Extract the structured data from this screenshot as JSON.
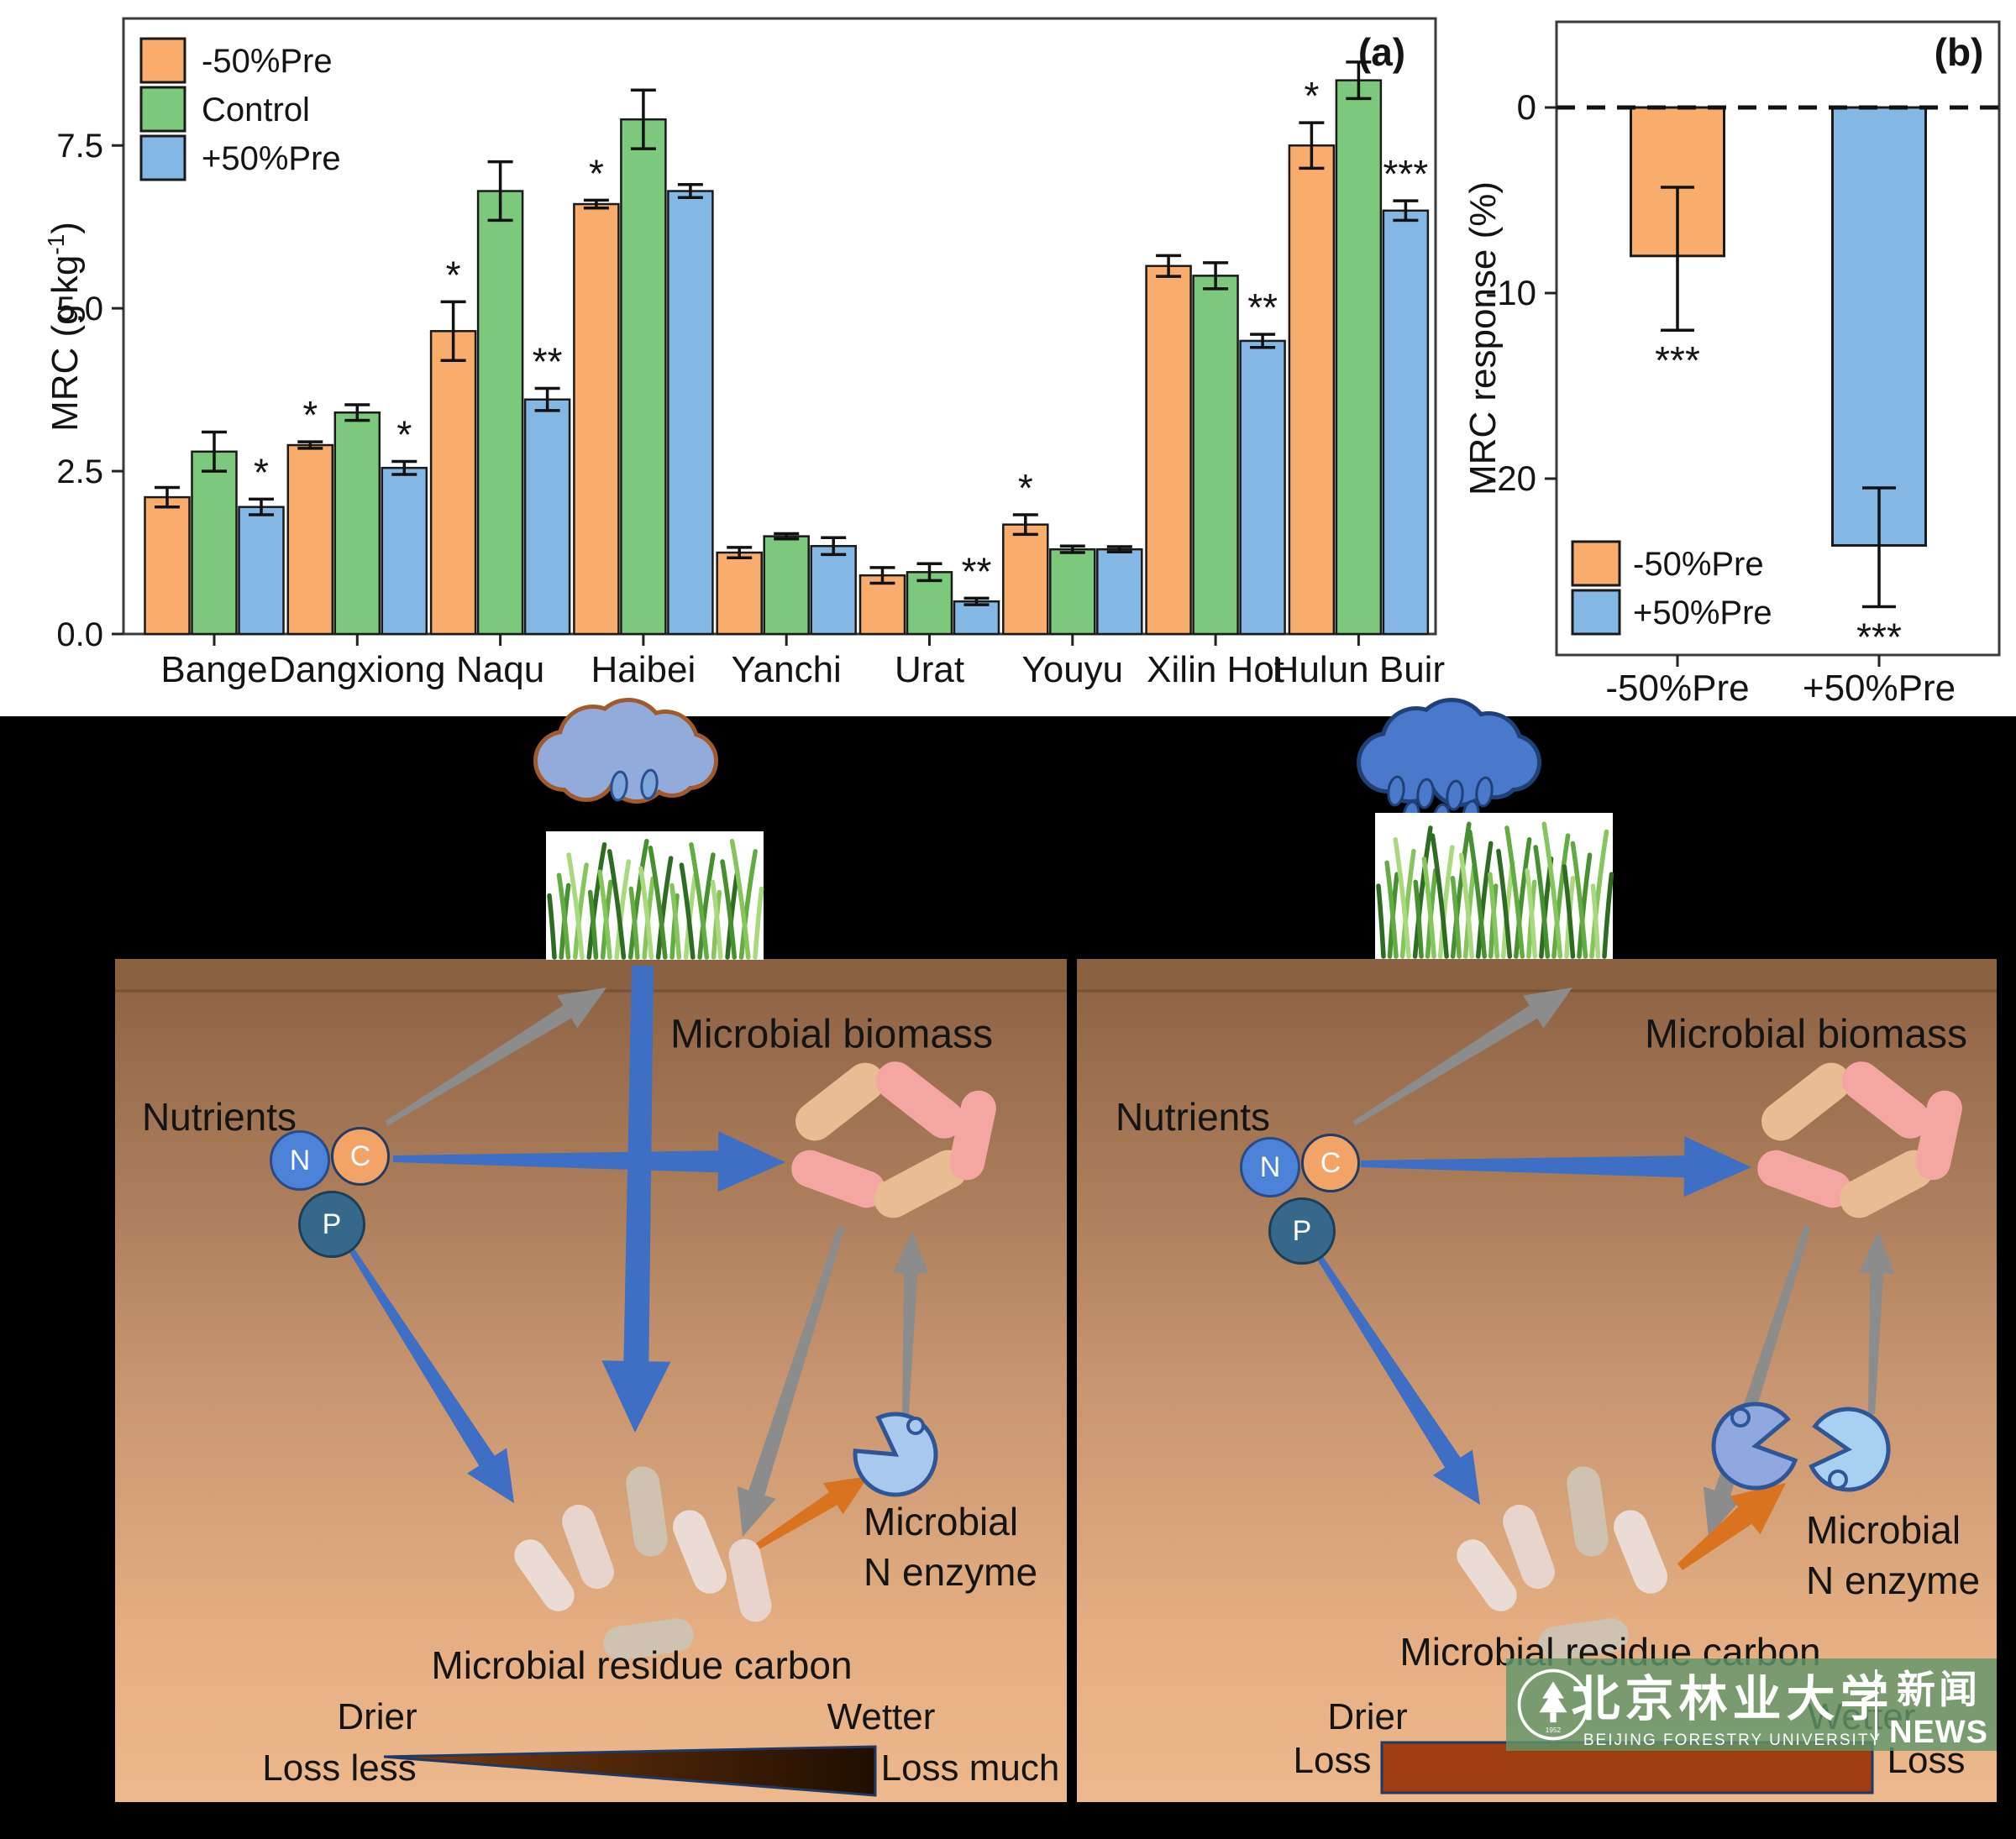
{
  "figure": {
    "panel_a_label": "(a)",
    "panel_b_label": "(b)"
  },
  "chart_data": [
    {
      "type": "bar",
      "panel_label": "(a)",
      "ylabel_main": "MRC (g kg",
      "ylabel_sup": "-1",
      "ylabel_close": ")",
      "yticks": [
        0.0,
        2.5,
        5.0,
        7.5
      ],
      "ylim": [
        0,
        9.4
      ],
      "grid": false,
      "legend_position": "top-left",
      "categories": [
        "Bange",
        "Dangxiong",
        "Naqu",
        "Haibei",
        "Yanchi",
        "Urat",
        "Youyu",
        "Xilin Hot",
        "Hulun Buir"
      ],
      "series": [
        {
          "name": "-50%Pre",
          "color": "#F9AD6C",
          "values": [
            2.1,
            2.9,
            4.65,
            6.6,
            1.25,
            0.9,
            1.68,
            5.65,
            7.5
          ],
          "errors": [
            0.15,
            0.05,
            0.45,
            0.06,
            0.08,
            0.12,
            0.15,
            0.16,
            0.35
          ],
          "sig": [
            "",
            "*",
            "*",
            "*",
            "",
            "",
            "*",
            "",
            "*"
          ]
        },
        {
          "name": "Control",
          "color": "#7CC87C",
          "values": [
            2.8,
            3.4,
            6.8,
            7.9,
            1.5,
            0.95,
            1.3,
            5.5,
            8.5
          ],
          "errors": [
            0.3,
            0.12,
            0.45,
            0.45,
            0.04,
            0.13,
            0.05,
            0.2,
            0.28
          ],
          "sig": [
            "",
            "",
            "",
            "",
            "",
            "",
            "",
            "",
            ""
          ]
        },
        {
          "name": "+50%Pre",
          "color": "#85B7E4",
          "values": [
            1.95,
            2.55,
            3.6,
            6.8,
            1.35,
            0.5,
            1.3,
            4.5,
            6.5
          ],
          "errors": [
            0.12,
            0.1,
            0.17,
            0.1,
            0.13,
            0.05,
            0.04,
            0.1,
            0.15
          ],
          "sig": [
            "*",
            "*",
            "**",
            "",
            "",
            "**",
            "",
            "**",
            "***"
          ]
        }
      ]
    },
    {
      "type": "bar",
      "panel_label": "(b)",
      "ylabel": "MRC response (%)",
      "yticks": [
        0,
        -10,
        -20
      ],
      "ylim": [
        -28.5,
        4.5
      ],
      "grid": false,
      "zero_line": "dashed",
      "categories": [
        "-50%Pre",
        "+50%Pre"
      ],
      "colors": [
        "#F9AD6C",
        "#85B7E4"
      ],
      "values": [
        -8,
        -23.6
      ],
      "errors_high": [
        -4.3,
        -20.5
      ],
      "errors_low": [
        -12,
        -26.9
      ],
      "sig": [
        "***",
        "***"
      ],
      "legend": [
        "-50%Pre",
        "+50%Pre"
      ]
    }
  ],
  "diagram": {
    "left_panel": {
      "nutrients_label": "Nutrients",
      "nutrient_icons": [
        "N",
        "C",
        "P"
      ],
      "biomass_label": "Microbial biomass",
      "enzyme_label_line1": "Microbial",
      "enzyme_label_line2": "N enzyme",
      "residue_label": "Microbial residue carbon",
      "moisture_left": "Drier",
      "moisture_right": "Wetter",
      "loss_left": "Loss less",
      "loss_right": "Loss much"
    },
    "right_panel": {
      "nutrients_label": "Nutrients",
      "nutrient_icons": [
        "N",
        "C",
        "P"
      ],
      "biomass_label": "Microbial biomass",
      "enzyme_label_line1": "Microbial",
      "enzyme_label_line2": "N enzyme",
      "residue_label": "Microbial residue carbon",
      "moisture_left": "Drier",
      "moisture_right": "Wetter",
      "loss_left": "Loss",
      "loss_right": "Loss"
    },
    "watermark": {
      "university_cn": "北京林业大学",
      "university_en": "BEIJING FORESTRY UNIVERSITY",
      "news_cn": "新闻",
      "news_en": "NEWS"
    },
    "colors": {
      "blue_arrow": "#3E6FC4",
      "gray_arrow": "#8C8C8C",
      "orange_arrow": "#D9731F",
      "soil_top": "#8B6143",
      "soil_bottom": "#EDB88D",
      "dry_cloud": "#93ABDB",
      "dry_cloud_outline": "#A05A2C",
      "wet_cloud": "#4A78CA",
      "wet_cloud_outline": "#1F4178"
    }
  }
}
